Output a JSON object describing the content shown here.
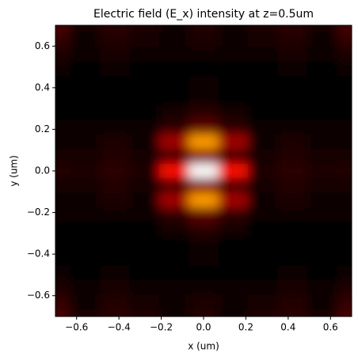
{
  "chart_data": {
    "type": "heatmap",
    "title": "Electric field (E_x) intensity at z=0.5um",
    "x_label": "x (um)",
    "y_label": "y (um)",
    "colormap": "hot",
    "xlim": [
      -0.7,
      0.7
    ],
    "ylim": [
      -0.7,
      0.7
    ],
    "xticks": [
      {
        "value": -0.6,
        "label": "−0.6"
      },
      {
        "value": -0.4,
        "label": "−0.4"
      },
      {
        "value": -0.2,
        "label": "−0.2"
      },
      {
        "value": 0,
        "label": "0.0"
      },
      0.2,
      0.4,
      0.6
    ],
    "yticks": [
      {
        "value": -0.6,
        "label": "−0.6"
      },
      {
        "value": -0.4,
        "label": "−0.4"
      },
      {
        "value": -0.2,
        "label": "−0.2"
      },
      {
        "value": 0,
        "label": "0.0"
      },
      0.2,
      0.4,
      0.6
    ],
    "x": [
      -0.7,
      -0.56,
      -0.42,
      -0.28,
      -0.14,
      0,
      0.14,
      0.28,
      0.42,
      0.56,
      0.7
    ],
    "y": [
      0.7,
      0.63,
      0.56,
      0.49,
      0.42,
      0.35,
      0.28,
      0.21,
      0.14,
      0.07,
      0,
      -0.07,
      -0.14,
      -0.21,
      -0.28,
      -0.35,
      -0.42,
      -0.49,
      -0.56,
      -0.63,
      -0.7
    ],
    "z": [
      [
        0.12,
        0.05,
        0.08,
        0.06,
        0.04,
        0.07,
        0.04,
        0.06,
        0.08,
        0.05,
        0.12
      ],
      [
        0.09,
        0.04,
        0.07,
        0.05,
        0.04,
        0.06,
        0.04,
        0.05,
        0.07,
        0.04,
        0.09
      ],
      [
        0.06,
        0.03,
        0.05,
        0.04,
        0.03,
        0.04,
        0.03,
        0.04,
        0.05,
        0.03,
        0.06
      ],
      [
        0.03,
        0.02,
        0.03,
        0.02,
        0.02,
        0.02,
        0.02,
        0.02,
        0.03,
        0.02,
        0.03
      ],
      [
        0.02,
        0.02,
        0.02,
        0.02,
        0.02,
        0.03,
        0.02,
        0.02,
        0.02,
        0.02,
        0.02
      ],
      [
        0.02,
        0.02,
        0.02,
        0.02,
        0.02,
        0.04,
        0.02,
        0.02,
        0.02,
        0.02,
        0.02
      ],
      [
        0.02,
        0.02,
        0.02,
        0.02,
        0.05,
        0.08,
        0.05,
        0.02,
        0.02,
        0.02,
        0.02
      ],
      [
        0.03,
        0.03,
        0.04,
        0.03,
        0.08,
        0.15,
        0.08,
        0.03,
        0.04,
        0.03,
        0.03
      ],
      [
        0.04,
        0.04,
        0.06,
        0.04,
        0.25,
        0.6,
        0.25,
        0.04,
        0.06,
        0.04,
        0.04
      ],
      [
        0.05,
        0.05,
        0.07,
        0.05,
        0.1,
        0.2,
        0.1,
        0.05,
        0.07,
        0.05,
        0.05
      ],
      [
        0.07,
        0.06,
        0.08,
        0.06,
        0.4,
        1.0,
        0.4,
        0.06,
        0.08,
        0.06,
        0.07
      ],
      [
        0.05,
        0.05,
        0.07,
        0.05,
        0.1,
        0.2,
        0.1,
        0.05,
        0.07,
        0.05,
        0.05
      ],
      [
        0.04,
        0.04,
        0.06,
        0.04,
        0.25,
        0.6,
        0.25,
        0.04,
        0.06,
        0.04,
        0.04
      ],
      [
        0.03,
        0.03,
        0.04,
        0.03,
        0.08,
        0.15,
        0.08,
        0.03,
        0.04,
        0.03,
        0.03
      ],
      [
        0.02,
        0.02,
        0.02,
        0.02,
        0.05,
        0.08,
        0.05,
        0.02,
        0.02,
        0.02,
        0.02
      ],
      [
        0.02,
        0.02,
        0.02,
        0.02,
        0.02,
        0.04,
        0.02,
        0.02,
        0.02,
        0.02,
        0.02
      ],
      [
        0.02,
        0.02,
        0.02,
        0.02,
        0.02,
        0.03,
        0.02,
        0.02,
        0.02,
        0.02,
        0.02
      ],
      [
        0.03,
        0.02,
        0.03,
        0.02,
        0.02,
        0.02,
        0.02,
        0.02,
        0.03,
        0.02,
        0.03
      ],
      [
        0.06,
        0.03,
        0.05,
        0.04,
        0.03,
        0.04,
        0.03,
        0.04,
        0.05,
        0.03,
        0.06
      ],
      [
        0.09,
        0.04,
        0.07,
        0.05,
        0.04,
        0.06,
        0.04,
        0.05,
        0.07,
        0.04,
        0.09
      ],
      [
        0.12,
        0.05,
        0.08,
        0.06,
        0.04,
        0.07,
        0.04,
        0.06,
        0.08,
        0.05,
        0.12
      ]
    ]
  }
}
